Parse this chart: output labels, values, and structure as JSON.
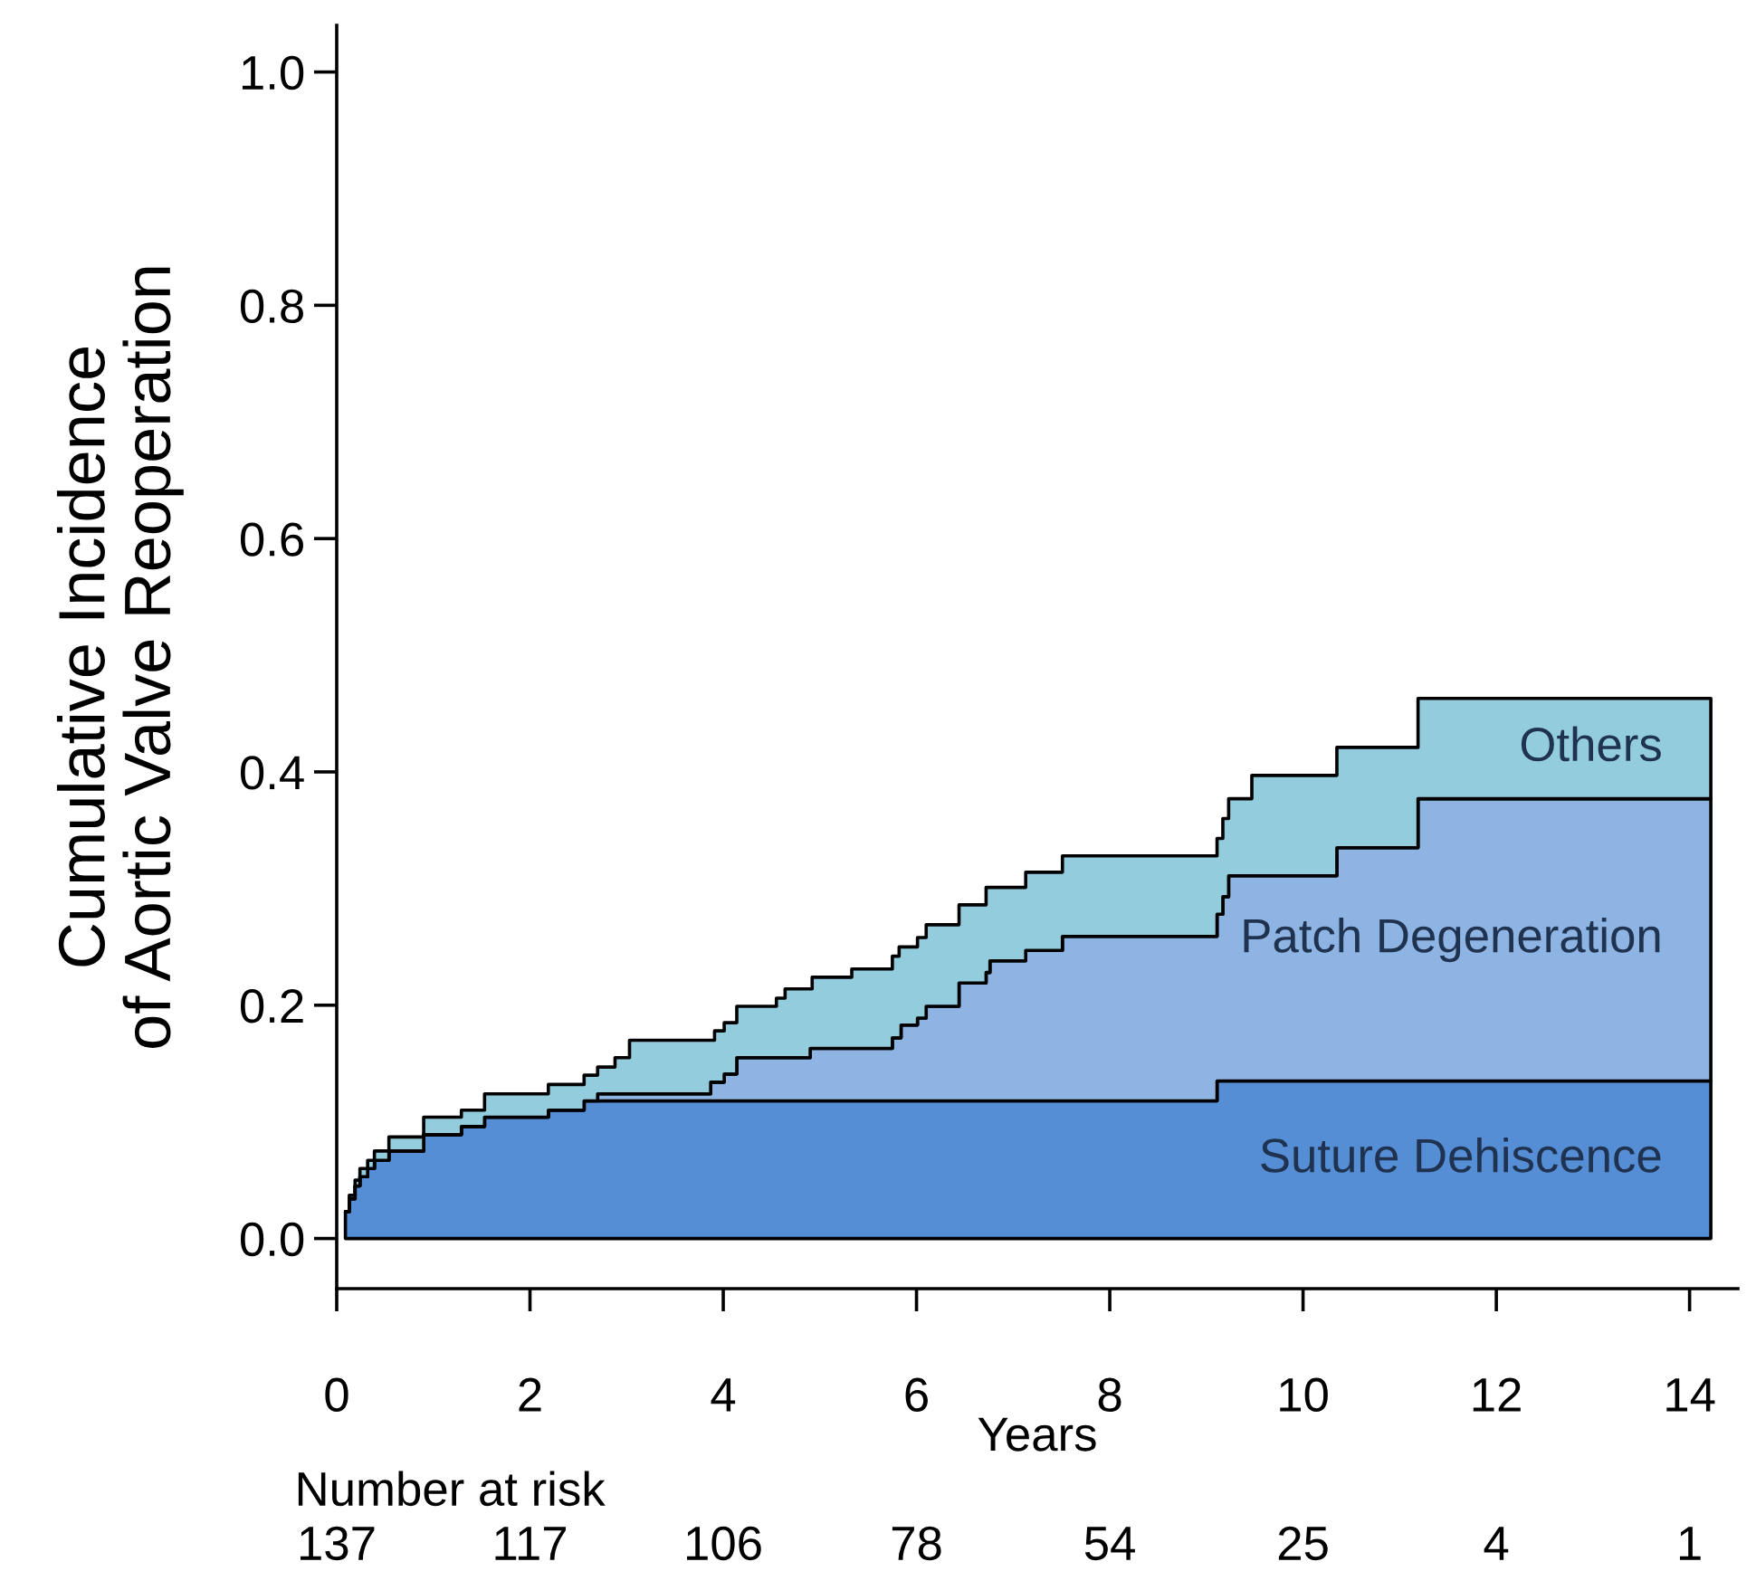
{
  "chart_data": {
    "type": "area",
    "stacked": true,
    "xlabel": "Years",
    "ylabel": "Cumulative Incidence\nof Aortic Valve Reoperation",
    "x": [
      0.09,
      0.13,
      0.13,
      0.19,
      0.19,
      0.24,
      0.24,
      0.32,
      0.32,
      0.39,
      0.39,
      0.54,
      0.54,
      0.9,
      0.9,
      1.29,
      1.29,
      1.53,
      1.53,
      2.19,
      2.19,
      2.56,
      2.56,
      2.7,
      2.7,
      2.88,
      2.88,
      3.03,
      3.03,
      3.87,
      3.87,
      3.91,
      3.91,
      4.01,
      4.01,
      4.14,
      4.14,
      4.55,
      4.55,
      4.64,
      4.64,
      4.9,
      4.9,
      4.92,
      4.92,
      5.33,
      5.33,
      5.75,
      5.75,
      5.82,
      5.82,
      5.84,
      5.84,
      6.01,
      6.01,
      6.1,
      6.1,
      6.44,
      6.44,
      6.72,
      6.72,
      6.76,
      6.76,
      7.13,
      7.13,
      7.51,
      7.51,
      9.11,
      9.11,
      9.17,
      9.17,
      9.23,
      9.23,
      9.47,
      9.47,
      10.35,
      10.35,
      11.19,
      11.19,
      14.22
    ],
    "series": [
      {
        "name": "Suture Dehiscence",
        "color": "#558ed5",
        "values": [
          0.023,
          0.023,
          0.034,
          0.034,
          0.045,
          0.045,
          0.053,
          0.053,
          0.06,
          0.06,
          0.067,
          0.067,
          0.075,
          0.075,
          0.089,
          0.089,
          0.096,
          0.096,
          0.104,
          0.104,
          0.11,
          0.11,
          0.118,
          0.118,
          0.118,
          0.118,
          0.118,
          0.118,
          0.118,
          0.118,
          0.118,
          0.118,
          0.118,
          0.118,
          0.118,
          0.118,
          0.118,
          0.118,
          0.118,
          0.118,
          0.118,
          0.118,
          0.118,
          0.118,
          0.118,
          0.118,
          0.118,
          0.118,
          0.118,
          0.118,
          0.118,
          0.118,
          0.118,
          0.118,
          0.118,
          0.118,
          0.118,
          0.118,
          0.118,
          0.118,
          0.118,
          0.118,
          0.118,
          0.118,
          0.118,
          0.118,
          0.118,
          0.118,
          0.135,
          0.135,
          0.135,
          0.135,
          0.135,
          0.135,
          0.135,
          0.135,
          0.135,
          0.135,
          0.135,
          0.135
        ]
      },
      {
        "name": "Patch Degeneration",
        "color": "#8eb4e3",
        "values": [
          0,
          0,
          0,
          0,
          0,
          0,
          0,
          0,
          0,
          0,
          0,
          0,
          0,
          0,
          0,
          0,
          0,
          0,
          0,
          0,
          0,
          0,
          0,
          0,
          0.006,
          0.006,
          0.006,
          0.006,
          0.006,
          0.006,
          0.016,
          0.016,
          0.016,
          0.016,
          0.023,
          0.023,
          0.037,
          0.037,
          0.037,
          0.037,
          0.037,
          0.037,
          0.045,
          0.045,
          0.045,
          0.045,
          0.045,
          0.045,
          0.054,
          0.054,
          0.054,
          0.054,
          0.065,
          0.065,
          0.071,
          0.071,
          0.081,
          0.081,
          0.101,
          0.101,
          0.11,
          0.11,
          0.12,
          0.12,
          0.129,
          0.129,
          0.141,
          0.141,
          0.143,
          0.143,
          0.158,
          0.158,
          0.176,
          0.176,
          0.176,
          0.176,
          0.2,
          0.2,
          0.242,
          0.242
        ]
      },
      {
        "name": "Others",
        "color": "#93cddd",
        "values": [
          0,
          0,
          0.003,
          0.003,
          0.005,
          0.005,
          0.007,
          0.007,
          0.007,
          0.007,
          0.008,
          0.008,
          0.012,
          0.012,
          0.015,
          0.015,
          0.014,
          0.014,
          0.02,
          0.02,
          0.022,
          0.022,
          0.022,
          0.022,
          0.023,
          0.023,
          0.031,
          0.031,
          0.046,
          0.046,
          0.036,
          0.036,
          0.044,
          0.044,
          0.044,
          0.044,
          0.044,
          0.044,
          0.051,
          0.051,
          0.059,
          0.059,
          0.051,
          0.051,
          0.061,
          0.061,
          0.068,
          0.068,
          0.07,
          0.07,
          0.078,
          0.078,
          0.067,
          0.067,
          0.069,
          0.069,
          0.07,
          0.07,
          0.067,
          0.067,
          0.073,
          0.073,
          0.063,
          0.063,
          0.067,
          0.067,
          0.069,
          0.069,
          0.065,
          0.065,
          0.067,
          0.067,
          0.066,
          0.066,
          0.086,
          0.086,
          0.086,
          0.086,
          0.086,
          0.086
        ]
      }
    ],
    "xlim": [
      0,
      14.5
    ],
    "xticks": [
      0,
      2,
      4,
      6,
      8,
      10,
      12,
      14
    ],
    "ylim": [
      -0.043,
      1.04
    ],
    "yticks": [
      {
        "value": 0,
        "label": "0.0"
      },
      {
        "value": 0.2,
        "label": "0.2"
      },
      {
        "value": 0.4,
        "label": "0.4"
      },
      {
        "value": 0.6,
        "label": "0.6"
      },
      {
        "value": 0.8,
        "label": "0.8"
      },
      {
        "value": 1,
        "label": "1.0"
      }
    ],
    "grid": false,
    "legend": false,
    "annotations": [
      "Number at risk",
      "137",
      "117",
      "106",
      "78",
      "54",
      "25",
      "4",
      "1"
    ]
  }
}
